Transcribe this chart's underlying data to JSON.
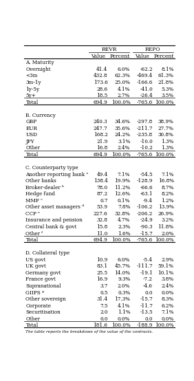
{
  "sections": [
    {
      "header": "A. Maturity",
      "rows": [
        [
          "Overnight",
          "41.4",
          "6.0%",
          "-62.2",
          "8.1%"
        ],
        [
          "<3m",
          "432.8",
          "62.3%",
          "-469.4",
          "61.3%"
        ],
        [
          "3m-1y",
          "173.6",
          "25.0%",
          "-166.6",
          "21.8%"
        ],
        [
          "1y-5y",
          "28.6",
          "4.1%",
          "-41.0",
          "5.3%"
        ],
        [
          "5y+",
          "18.5",
          "2.7%",
          "-26.4",
          "3.5%"
        ],
        [
          "Total",
          "694.9",
          "100.0%",
          "-765.6",
          "100.0%"
        ]
      ],
      "total_row": 5
    },
    {
      "header": "B. Currency",
      "rows": [
        [
          "GBP",
          "240.3",
          "34.6%",
          "-297.8",
          "38.9%"
        ],
        [
          "EUR",
          "247.7",
          "35.6%",
          "-211.7",
          "27.7%"
        ],
        [
          "USD",
          "168.2",
          "24.2%",
          "-235.8",
          "30.8%"
        ],
        [
          "JPY",
          "21.9",
          "3.1%",
          "-10.0",
          "1.3%"
        ],
        [
          "Other",
          "16.8",
          "2.4%",
          "-10.2",
          "1.3%"
        ],
        [
          "Total",
          "694.9",
          "100.0%",
          "-765.6",
          "100.0%"
        ]
      ],
      "total_row": 5
    },
    {
      "header": "C. Counterparty type",
      "rows": [
        [
          "Another reporting bank ᵃ",
          "49.4",
          "7.1%",
          "-54.5",
          "7.1%"
        ],
        [
          "Other banks",
          "138.4",
          "19.9%",
          "-128.9",
          "16.8%"
        ],
        [
          "Broker-dealer ᵇ",
          "78.0",
          "11.2%",
          "-66.6",
          "8.7%"
        ],
        [
          "Hedge fund",
          "87.2",
          "12.6%",
          "-63.1",
          "8.2%"
        ],
        [
          "MMF ᶜ",
          "0.7",
          "0.1%",
          "-9.4",
          "1.2%"
        ],
        [
          "Other asset managers ᵈ",
          "53.9",
          "7.8%",
          "-106.2",
          "13.9%"
        ],
        [
          "CCP ᵉ",
          "227.6",
          "32.8%",
          "-206.2",
          "26.9%"
        ],
        [
          "Insurance and pension",
          "32.8",
          "4.7%",
          "-24.9",
          "3.2%"
        ],
        [
          "Central bank & govt",
          "15.8",
          "2.3%",
          "-90.3",
          "11.8%"
        ],
        [
          "Other ᶠ",
          "11.0",
          "1.6%",
          "-15.7",
          "2.0%"
        ],
        [
          "Total",
          "694.9",
          "100.0%",
          "-765.6",
          "100.0%"
        ]
      ],
      "total_row": 10
    },
    {
      "header": "D. Collateral type",
      "rows": [
        [
          "US govt",
          "10.9",
          "6.0%",
          "-5.4",
          "2.9%"
        ],
        [
          "UK govt",
          "83.1",
          "45.7%",
          "-111.7",
          "59.1%"
        ],
        [
          "Germany govt",
          "25.5",
          "14.0%",
          "-19.1",
          "10.1%"
        ],
        [
          "France govt",
          "16.9",
          "9.3%",
          "-7.2",
          "3.8%"
        ],
        [
          "Supranational",
          "3.7",
          "2.0%",
          "-4.6",
          "2.4%"
        ],
        [
          "GIIPS ᵍ",
          "0.5",
          "0.3%",
          "0.0",
          "0.0%"
        ],
        [
          "Other sovereign",
          "31.4",
          "17.3%",
          "-15.7",
          "8.3%"
        ],
        [
          "Corporate",
          "7.5",
          "4.1%",
          "-11.7",
          "6.2%"
        ],
        [
          "Securitisation",
          "2.0",
          "1.1%",
          "-13.5",
          "7.1%"
        ],
        [
          "Other",
          "0.0",
          "0.0%",
          "0.0",
          "0.0%"
        ],
        [
          "Total",
          "181.6",
          "100.0%",
          "-188.9",
          "100.0%"
        ]
      ],
      "total_row": 10
    }
  ],
  "footnote": "The table reports the breakdown of the value of the contracts.",
  "text_color": "#000000",
  "font_size": 5.2,
  "header_font_size": 5.5,
  "col_starts": [
    0.0,
    0.42,
    0.56,
    0.71,
    0.86
  ],
  "col_ends": [
    0.42,
    0.56,
    0.71,
    0.86,
    1.0
  ]
}
